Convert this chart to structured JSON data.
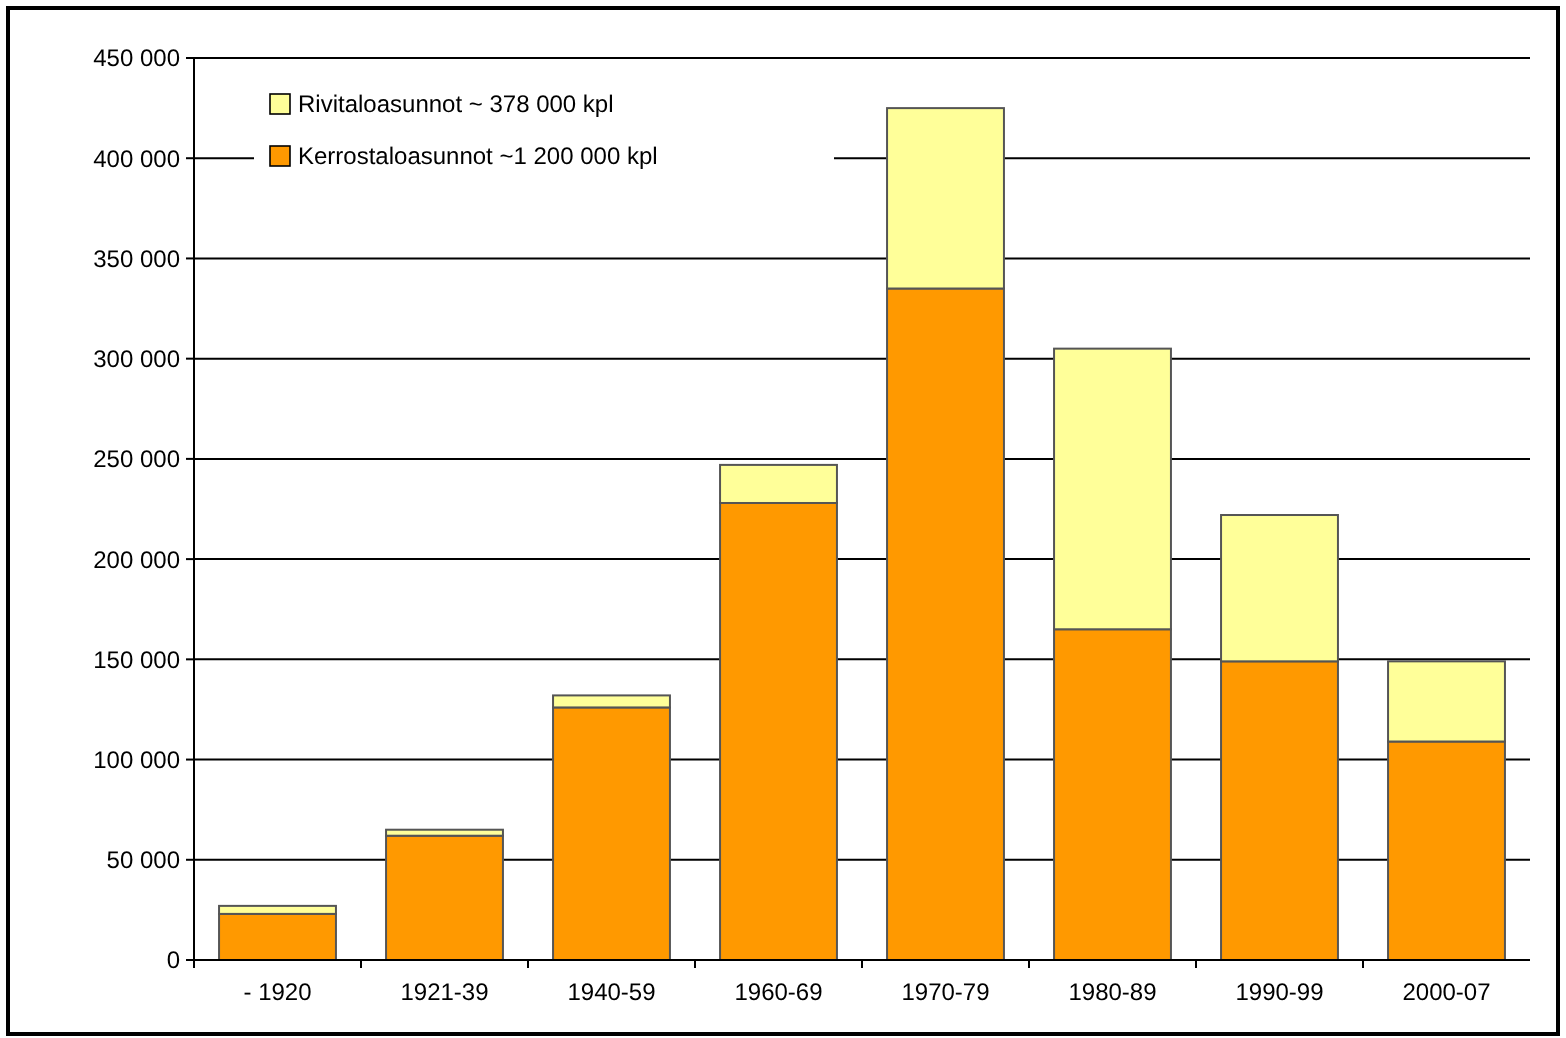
{
  "chart_data": {
    "type": "bar",
    "stacked": true,
    "categories": [
      "- 1920",
      "1921-39",
      "1940-59",
      "1960-69",
      "1970-79",
      "1980-89",
      "1990-99",
      "2000-07"
    ],
    "series": [
      {
        "name": "Kerrostaloasunnot ~1 200 000 kpl",
        "color": "#ff9900",
        "values": [
          23000,
          62000,
          126000,
          228000,
          335000,
          165000,
          149000,
          109000
        ]
      },
      {
        "name": "Rivitaloasunnot ~ 378 000 kpl",
        "color": "#ffff99",
        "values": [
          4000,
          3000,
          6000,
          19000,
          90000,
          140000,
          73000,
          40000
        ]
      }
    ],
    "ylim": [
      0,
      450000
    ],
    "yticks": [
      0,
      {
        "value": 50000,
        "label": "50 000"
      },
      {
        "value": 100000,
        "label": "100 000"
      },
      {
        "value": 150000,
        "label": "150 000"
      },
      {
        "value": 200000,
        "label": "200 000"
      },
      {
        "value": 250000,
        "label": "250 000"
      },
      {
        "value": 300000,
        "label": "300 000"
      },
      {
        "value": 350000,
        "label": "350 000"
      },
      {
        "value": 400000,
        "label": "400 000"
      },
      {
        "value": 450000,
        "label": "450 000"
      }
    ],
    "grid": "y",
    "legend": "top left"
  }
}
